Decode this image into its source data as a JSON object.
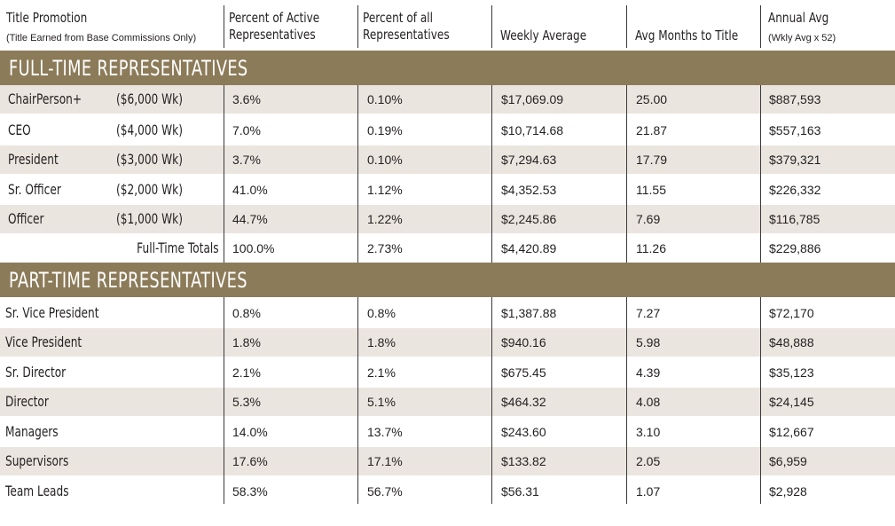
{
  "header": {
    "col1_title": "Title Promotion",
    "col1_sub": "(Title Earned from Base Commissions Only)",
    "col2_line1": "Percent of Active",
    "col2_line2": "Representatives",
    "col3_line1": "Percent of all",
    "col3_line2": "Representatives",
    "col4": "Weekly Average",
    "col5": "Avg Months to Title",
    "col6_title": "Annual Avg",
    "col6_sub": "(Wkly Avg x 52)"
  },
  "full_time": {
    "label": "FULL-TIME REPRESENTATIVES",
    "rows": [
      {
        "title": "ChairPerson+",
        "weekly_req": "($6,000 Wk)",
        "pct_active": "3.6%",
        "pct_all": "0.10%",
        "weekly_avg": "$17,069.09",
        "months": "25.00",
        "annual": "$887,593"
      },
      {
        "title": "CEO",
        "weekly_req": "($4,000 Wk)",
        "pct_active": "7.0%",
        "pct_all": "0.19%",
        "weekly_avg": "$10,714.68",
        "months": "21.87",
        "annual": "$557,163"
      },
      {
        "title": "President",
        "weekly_req": "($3,000 Wk)",
        "pct_active": "3.7%",
        "pct_all": "0.10%",
        "weekly_avg": "$7,294.63",
        "months": "17.79",
        "annual": "$379,321"
      },
      {
        "title": "Sr. Officer",
        "weekly_req": "($2,000 Wk)",
        "pct_active": "41.0%",
        "pct_all": "1.12%",
        "weekly_avg": "$4,352.53",
        "months": "11.55",
        "annual": "$226,332"
      },
      {
        "title": "Officer",
        "weekly_req": "($1,000 Wk)",
        "pct_active": "44.7%",
        "pct_all": "1.22%",
        "weekly_avg": "$2,245.86",
        "months": "7.69",
        "annual": "$116,785"
      }
    ],
    "totals": {
      "label": "Full-Time Totals",
      "pct_active": "100.0%",
      "pct_all": "2.73%",
      "weekly_avg": "$4,420.89",
      "months": "11.26",
      "annual": "$229,886"
    }
  },
  "part_time": {
    "label": "PART-TIME REPRESENTATIVES",
    "rows": [
      {
        "title": "Sr. Vice President",
        "pct_active": "0.8%",
        "pct_all": "0.8%",
        "weekly_avg": "$1,387.88",
        "months": "7.27",
        "annual": "$72,170"
      },
      {
        "title": "Vice President",
        "pct_active": "1.8%",
        "pct_all": "1.8%",
        "weekly_avg": "$940.16",
        "months": "5.98",
        "annual": "$48,888"
      },
      {
        "title": "Sr. Director",
        "pct_active": "2.1%",
        "pct_all": "2.1%",
        "weekly_avg": "$675.45",
        "months": "4.39",
        "annual": "$35,123"
      },
      {
        "title": "Director",
        "pct_active": "5.3%",
        "pct_all": "5.1%",
        "weekly_avg": "$464.32",
        "months": "4.08",
        "annual": "$24,145"
      },
      {
        "title": "Managers",
        "pct_active": "14.0%",
        "pct_all": "13.7%",
        "weekly_avg": "$243.60",
        "months": "3.10",
        "annual": "$12,667"
      },
      {
        "title": "Supervisors",
        "pct_active": "17.6%",
        "pct_all": "17.1%",
        "weekly_avg": "$133.82",
        "months": "2.05",
        "annual": "$6,959"
      },
      {
        "title": "Team Leads",
        "pct_active": "58.3%",
        "pct_all": "56.7%",
        "weekly_avg": "$56.31",
        "months": "1.07",
        "annual": "$2,928"
      }
    ]
  },
  "colors": {
    "band": "#8c7b59",
    "shade": "#ebe5df",
    "text": "#231f20"
  }
}
